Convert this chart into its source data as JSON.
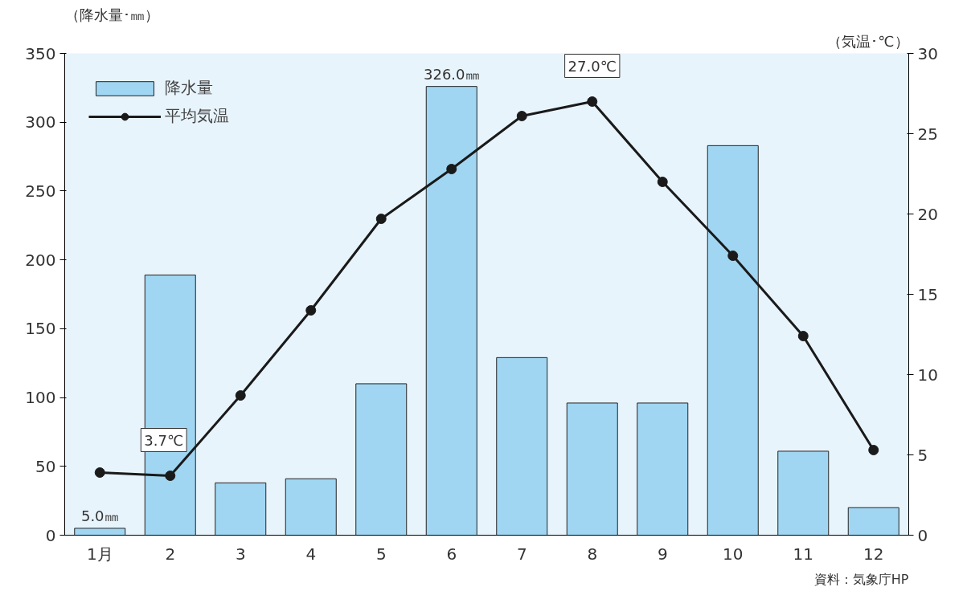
{
  "chart_data": {
    "type": "bar",
    "ylabel": "（降水量･㎜）",
    "y2label": "（気温･℃）",
    "categories": [
      "1月",
      "2",
      "3",
      "4",
      "5",
      "6",
      "7",
      "8",
      "9",
      "10",
      "11",
      "12"
    ],
    "series": [
      {
        "name": "降水量",
        "color": "#a0d6f2",
        "values": [
          5.0,
          189,
          38,
          41,
          110,
          326.0,
          129,
          96,
          96,
          283,
          61,
          20
        ],
        "value_labels": [
          "5.0㎜",
          null,
          null,
          null,
          null,
          "326.0㎜",
          null,
          null,
          null,
          null,
          null,
          null
        ]
      },
      {
        "name": "平均気温",
        "type": "line",
        "axis": "y2",
        "color": "#1a1a1a",
        "values": [
          3.9,
          3.7,
          8.7,
          14.0,
          19.7,
          22.8,
          26.1,
          27.0,
          22.0,
          17.4,
          12.4,
          5.3
        ],
        "value_labels": [
          null,
          "3.7℃",
          null,
          null,
          null,
          null,
          null,
          "27.0℃",
          null,
          null,
          null,
          null
        ]
      }
    ],
    "ylim": [
      0,
      350
    ],
    "yticks": [
      0,
      50,
      100,
      150,
      200,
      250,
      300,
      350
    ],
    "y2lim": [
      0,
      30
    ],
    "y2ticks": [
      0,
      5,
      10,
      15,
      20,
      25,
      30
    ],
    "marker": "circle",
    "line_style": "solid",
    "grid": false,
    "legend": "top left",
    "annotations": [
      "資料：気象庁HP"
    ]
  }
}
